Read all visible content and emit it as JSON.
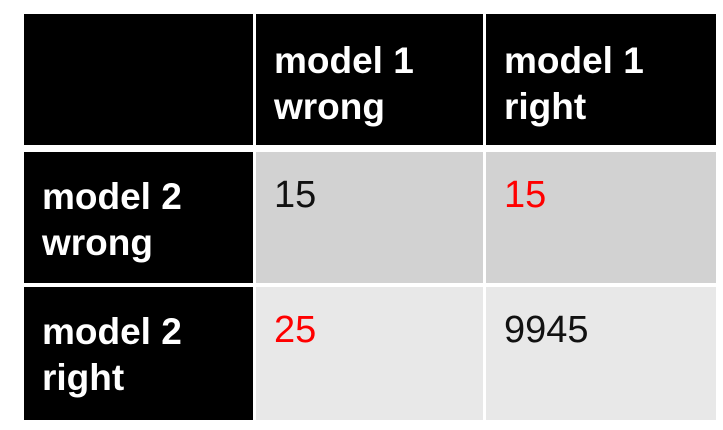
{
  "table": {
    "columns": [
      "",
      "model 1 wrong",
      "model 1 right"
    ],
    "rows": [
      {
        "label": "model 2 wrong",
        "values": [
          "15",
          "15"
        ]
      },
      {
        "label": "model 2 right",
        "values": [
          "25",
          "9945"
        ]
      }
    ],
    "colors": {
      "header_bg": "#000000",
      "header_text": "#ffffff",
      "row1_bg": "#d2d2d2",
      "row2_bg": "#e8e8e8",
      "highlight": "#ff0000",
      "value_text": "#111111"
    }
  }
}
